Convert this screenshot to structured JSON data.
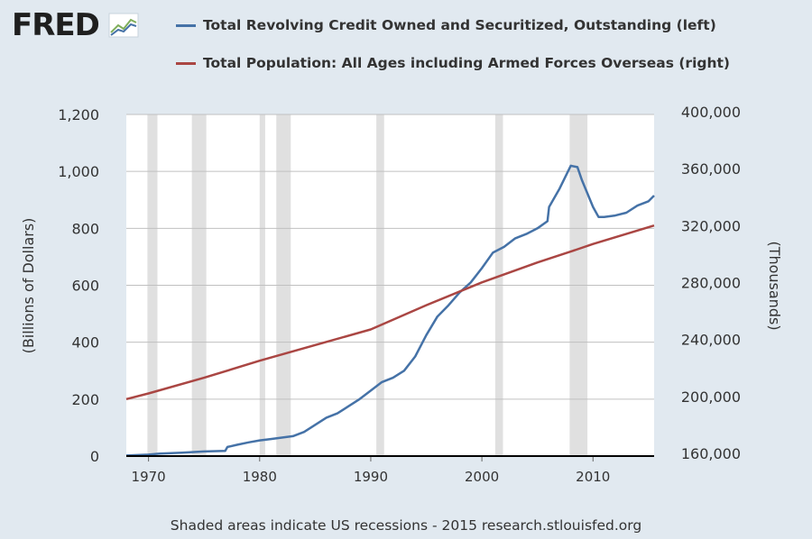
{
  "header": {
    "brand": "FRED",
    "brand_icon": "fred-chart-icon"
  },
  "legend": [
    {
      "label": "Total Revolving Credit Owned and Securitized, Outstanding (left)",
      "color": "#4572a7"
    },
    {
      "label": "Total Population: All Ages including Armed Forces Overseas (right)",
      "color": "#aa4643"
    }
  ],
  "footer": {
    "text": "Shaded areas indicate US recessions - 2015 research.stlouisfed.org"
  },
  "chart_data": {
    "type": "line",
    "xlim": [
      1968,
      2015.5
    ],
    "x_ticks": [
      1970,
      1980,
      1990,
      2000,
      2010
    ],
    "x_tick_labels": [
      "1970",
      "1980",
      "1990",
      "2000",
      "2010"
    ],
    "left_axis": {
      "label": "(Billions of Dollars)",
      "ylim": [
        0,
        1200
      ],
      "ticks": [
        0,
        200,
        400,
        600,
        800,
        1000,
        1200
      ],
      "tick_labels": [
        "0",
        "200",
        "400",
        "600",
        "800",
        "1,000",
        "1,200"
      ]
    },
    "right_axis": {
      "label": "(Thousands)",
      "ylim": [
        160000,
        400000
      ],
      "ticks": [
        160000,
        200000,
        240000,
        280000,
        320000,
        360000,
        400000
      ],
      "tick_labels": [
        "160,000",
        "200,000",
        "240,000",
        "280,000",
        "320,000",
        "360,000",
        "400,000"
      ]
    },
    "recessions": [
      [
        1969.9,
        1970.8
      ],
      [
        1973.9,
        1975.2
      ],
      [
        1980.0,
        1980.5
      ],
      [
        1981.5,
        1982.8
      ],
      [
        1990.5,
        1991.2
      ],
      [
        2001.2,
        2001.9
      ],
      [
        2007.9,
        2009.5
      ]
    ],
    "series": [
      {
        "name": "Total Revolving Credit Owned and Securitized, Outstanding (left)",
        "axis": "left",
        "color": "#4572a7",
        "x": [
          1968,
          1970,
          1971,
          1973,
          1975,
          1976.9,
          1977.1,
          1978,
          1979,
          1980,
          1981,
          1982,
          1983,
          1984,
          1985,
          1986,
          1987,
          1988,
          1989,
          1990,
          1991,
          1992,
          1993,
          1994,
          1995,
          1996,
          1997,
          1998,
          1999,
          2000,
          2001,
          2002,
          2003,
          2004,
          2005,
          2005.9,
          2006.05,
          2007,
          2008,
          2008.6,
          2009,
          2010,
          2010.5,
          2011,
          2012,
          2013,
          2014,
          2015,
          2015.5
        ],
        "values": [
          2,
          5,
          9,
          12,
          16,
          18,
          32,
          40,
          48,
          55,
          60,
          65,
          70,
          85,
          110,
          135,
          150,
          175,
          200,
          230,
          260,
          275,
          300,
          350,
          425,
          490,
          530,
          575,
          610,
          660,
          715,
          735,
          765,
          780,
          800,
          825,
          875,
          940,
          1020,
          1015,
          970,
          875,
          840,
          840,
          845,
          855,
          880,
          895,
          915
        ]
      },
      {
        "name": "Total Population: All Ages including Armed Forces Overseas (right)",
        "axis": "right",
        "color": "#aa4643",
        "x": [
          1968,
          1970,
          1975,
          1980,
          1985,
          1990,
          1995,
          2000,
          2005,
          2008.5,
          2010,
          2015.5
        ],
        "values": [
          200000,
          204000,
          215000,
          227000,
          238000,
          249000,
          266000,
          282000,
          296000,
          305000,
          309000,
          322000
        ]
      }
    ]
  }
}
